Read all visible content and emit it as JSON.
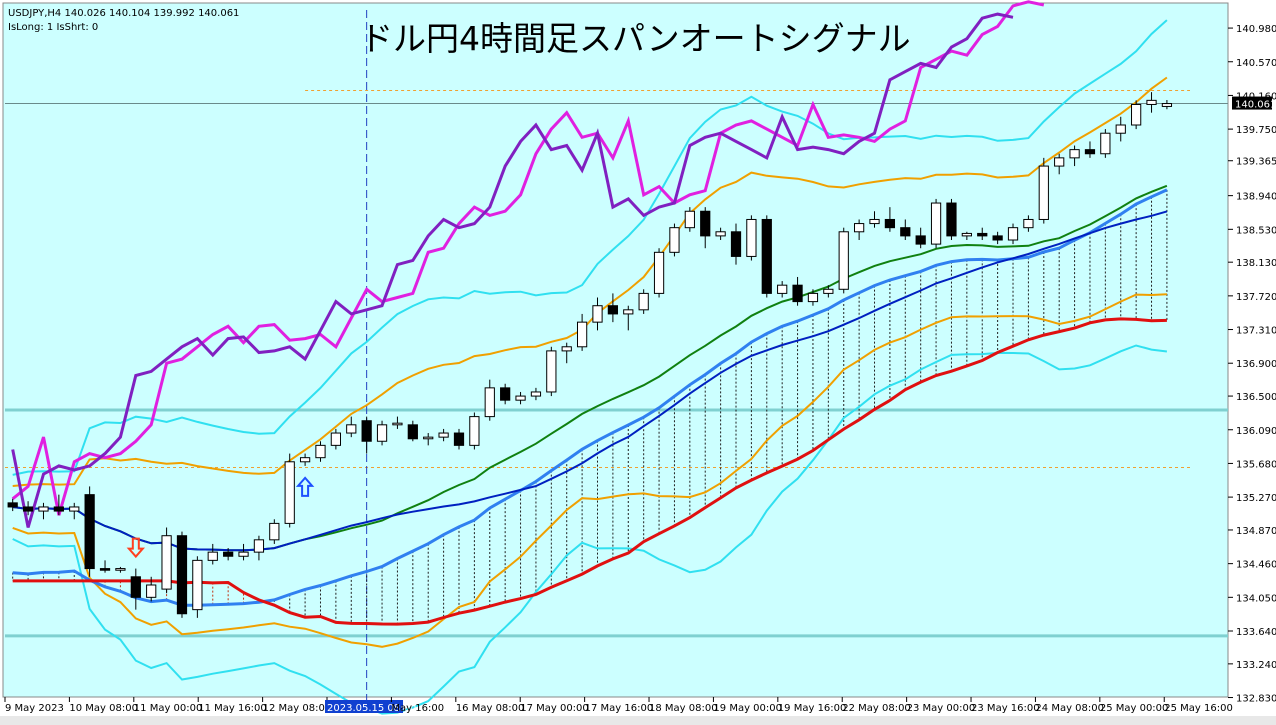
{
  "header": {
    "symbol_line": "USDJPY,H4  140.026 140.104 139.992 140.061",
    "indicator_line": "IsLong: 1 IsShrt: 0",
    "title": "ドル円4時間足スパンオートシグナル"
  },
  "colors": {
    "background": "#ccffff",
    "price_tag": "#000000",
    "signal_up": "#1e50ff",
    "signal_down": "#ff4020"
  },
  "chart_data": {
    "type": "candlestick",
    "symbol": "USDJPY",
    "timeframe": "H4",
    "current_price": "140.061",
    "highlighted_time_label": "2023.05.15 08:00",
    "ylim": [
      132.8,
      141.2
    ],
    "y_ticks": [
      "140.980",
      "140.570",
      "140.160",
      "139.750",
      "139.365",
      "138.940",
      "138.530",
      "138.130",
      "137.720",
      "137.310",
      "136.900",
      "136.500",
      "136.090",
      "135.680",
      "135.270",
      "134.870",
      "134.460",
      "134.050",
      "133.640",
      "133.240",
      "132.830"
    ],
    "x_ticks": [
      "9 May 2023",
      "10 May 08:00",
      "11 May 00:00",
      "11 May 16:00",
      "12 May 08:00",
      "2023.05.15 08:00",
      "May 16:00",
      "16 May 08:00",
      "17 May 00:00",
      "17 May 16:00",
      "18 May 08:00",
      "19 May 00:00",
      "19 May 16:00",
      "22 May 08:00",
      "23 May 00:00",
      "23 May 16:00",
      "24 May 08:00",
      "25 May 00:00",
      "25 May 16:00"
    ],
    "candles": [
      [
        135.2,
        135.25,
        135.1,
        135.15
      ],
      [
        135.15,
        135.22,
        135.05,
        135.1
      ],
      [
        135.1,
        135.2,
        135.0,
        135.15
      ],
      [
        135.15,
        135.3,
        135.05,
        135.1
      ],
      [
        135.1,
        135.2,
        135.0,
        135.15
      ],
      [
        135.3,
        135.4,
        134.3,
        134.4
      ],
      [
        134.4,
        134.5,
        134.35,
        134.38
      ],
      [
        134.38,
        134.42,
        134.35,
        134.4
      ],
      [
        134.3,
        134.4,
        133.9,
        134.05
      ],
      [
        134.05,
        134.3,
        134.0,
        134.2
      ],
      [
        134.15,
        134.9,
        134.1,
        134.8
      ],
      [
        134.8,
        134.85,
        133.8,
        133.85
      ],
      [
        133.9,
        134.55,
        133.8,
        134.5
      ],
      [
        134.5,
        134.7,
        134.45,
        134.6
      ],
      [
        134.6,
        134.65,
        134.5,
        134.55
      ],
      [
        134.55,
        134.7,
        134.5,
        134.6
      ],
      [
        134.6,
        134.8,
        134.5,
        134.75
      ],
      [
        134.75,
        135.0,
        134.7,
        134.95
      ],
      [
        134.95,
        135.8,
        134.9,
        135.7
      ],
      [
        135.7,
        135.8,
        135.65,
        135.75
      ],
      [
        135.75,
        135.95,
        135.7,
        135.9
      ],
      [
        135.9,
        136.1,
        135.85,
        136.05
      ],
      [
        136.05,
        136.25,
        136.0,
        136.15
      ],
      [
        136.2,
        136.25,
        135.8,
        135.95
      ],
      [
        135.95,
        136.2,
        135.9,
        136.15
      ],
      [
        136.15,
        136.25,
        136.1,
        136.17
      ],
      [
        136.15,
        136.2,
        135.95,
        135.98
      ],
      [
        135.98,
        136.05,
        135.9,
        136.0
      ],
      [
        136.0,
        136.1,
        135.95,
        136.05
      ],
      [
        136.05,
        136.1,
        135.85,
        135.9
      ],
      [
        135.9,
        136.3,
        135.85,
        136.25
      ],
      [
        136.25,
        136.7,
        136.2,
        136.6
      ],
      [
        136.6,
        136.65,
        136.4,
        136.45
      ],
      [
        136.45,
        136.55,
        136.4,
        136.5
      ],
      [
        136.5,
        136.6,
        136.45,
        136.55
      ],
      [
        136.55,
        137.1,
        136.5,
        137.05
      ],
      [
        137.05,
        137.15,
        136.9,
        137.1
      ],
      [
        137.1,
        137.5,
        137.05,
        137.4
      ],
      [
        137.4,
        137.7,
        137.3,
        137.6
      ],
      [
        137.6,
        137.75,
        137.4,
        137.5
      ],
      [
        137.5,
        137.6,
        137.3,
        137.55
      ],
      [
        137.55,
        137.8,
        137.5,
        137.75
      ],
      [
        137.75,
        138.3,
        137.7,
        138.25
      ],
      [
        138.25,
        138.6,
        138.2,
        138.55
      ],
      [
        138.55,
        138.8,
        138.5,
        138.75
      ],
      [
        138.75,
        138.8,
        138.3,
        138.45
      ],
      [
        138.45,
        138.55,
        138.4,
        138.5
      ],
      [
        138.5,
        138.6,
        138.1,
        138.2
      ],
      [
        138.2,
        138.7,
        138.15,
        138.65
      ],
      [
        138.65,
        138.7,
        137.7,
        137.75
      ],
      [
        137.75,
        137.9,
        137.7,
        137.85
      ],
      [
        137.85,
        137.95,
        137.6,
        137.65
      ],
      [
        137.65,
        137.8,
        137.6,
        137.75
      ],
      [
        137.75,
        137.85,
        137.7,
        137.8
      ],
      [
        137.8,
        138.55,
        137.75,
        138.5
      ],
      [
        138.5,
        138.65,
        138.4,
        138.6
      ],
      [
        138.6,
        138.75,
        138.55,
        138.65
      ],
      [
        138.65,
        138.8,
        138.5,
        138.55
      ],
      [
        138.55,
        138.65,
        138.4,
        138.45
      ],
      [
        138.45,
        138.55,
        138.3,
        138.35
      ],
      [
        138.35,
        138.9,
        138.3,
        138.85
      ],
      [
        138.85,
        138.9,
        138.4,
        138.45
      ],
      [
        138.45,
        138.5,
        138.4,
        138.48
      ],
      [
        138.48,
        138.55,
        138.4,
        138.45
      ],
      [
        138.45,
        138.5,
        138.35,
        138.4
      ],
      [
        138.4,
        138.6,
        138.35,
        138.55
      ],
      [
        138.55,
        138.7,
        138.5,
        138.65
      ],
      [
        138.65,
        139.4,
        138.6,
        139.3
      ],
      [
        139.3,
        139.45,
        139.2,
        139.4
      ],
      [
        139.4,
        139.55,
        139.3,
        139.5
      ],
      [
        139.5,
        139.6,
        139.4,
        139.45
      ],
      [
        139.45,
        139.75,
        139.4,
        139.7
      ],
      [
        139.7,
        139.9,
        139.6,
        139.8
      ],
      [
        139.8,
        140.1,
        139.75,
        140.05
      ],
      [
        140.05,
        140.2,
        139.95,
        140.1
      ],
      [
        140.026,
        140.104,
        139.992,
        140.061
      ]
    ],
    "signals": [
      {
        "type": "sell",
        "bar": 8
      },
      {
        "type": "buy",
        "bar": 19
      }
    ]
  }
}
